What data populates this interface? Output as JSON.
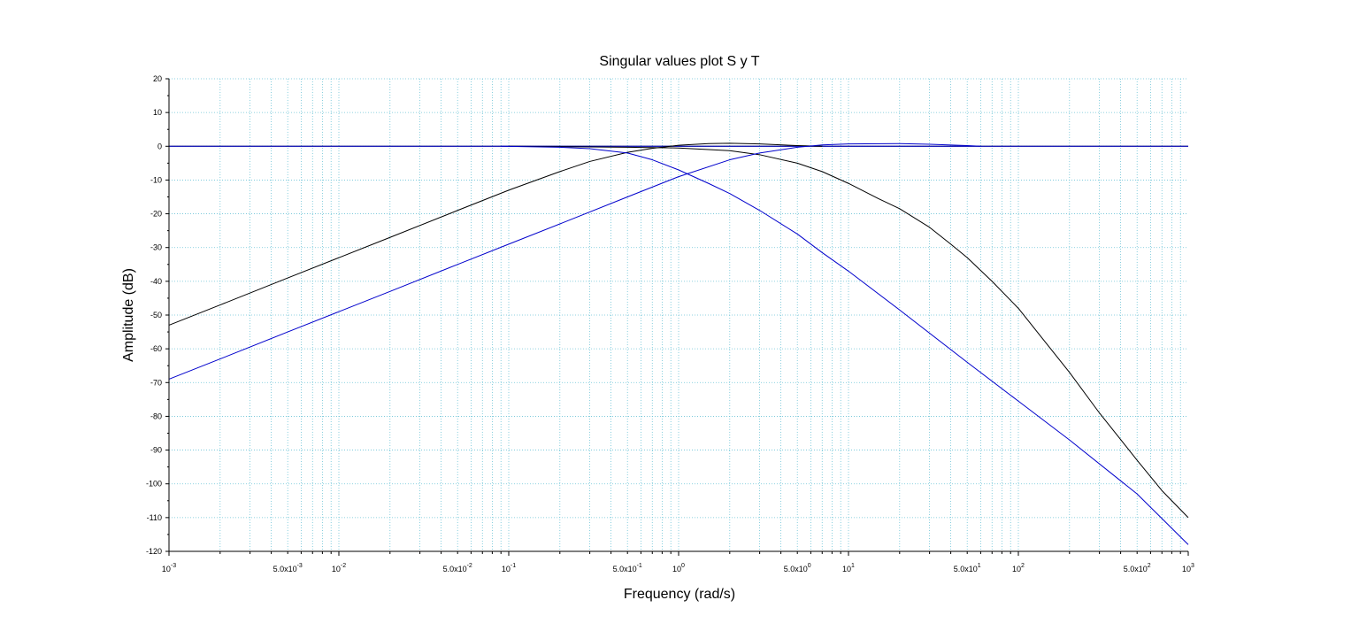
{
  "chart_data": {
    "type": "line",
    "title": "Singular values plot S y T",
    "xlabel": "Frequency (rad/s)",
    "ylabel": "Amplitude (dB)",
    "xscale": "log",
    "xlim": [
      0.001,
      1000
    ],
    "ylim": [
      -120,
      20
    ],
    "grid": true,
    "colors": {
      "grid": "#6bc3d6",
      "axes": "#000000",
      "series_black": "#000000",
      "series_blue": "#0000cc"
    },
    "y_ticks": [
      {
        "value": 20,
        "label": "20"
      },
      {
        "value": 10,
        "label": "10"
      },
      {
        "value": 0,
        "label": "0"
      },
      {
        "value": -10,
        "label": "-10"
      },
      {
        "value": -20,
        "label": "-20"
      },
      {
        "value": -30,
        "label": "-30"
      },
      {
        "value": -40,
        "label": "-40"
      },
      {
        "value": -50,
        "label": "-50"
      },
      {
        "value": -60,
        "label": "-60"
      },
      {
        "value": -70,
        "label": "-70"
      },
      {
        "value": -80,
        "label": "-80"
      },
      {
        "value": -90,
        "label": "-90"
      },
      {
        "value": -100,
        "label": "-100"
      },
      {
        "value": -110,
        "label": "-110"
      },
      {
        "value": -120,
        "label": "-120"
      }
    ],
    "x_ticks": [
      {
        "value": 0.001,
        "base": "10",
        "exp": "-3",
        "coef": ""
      },
      {
        "value": 0.005,
        "base": "5.0x10",
        "exp": "-3",
        "coef": ""
      },
      {
        "value": 0.01,
        "base": "10",
        "exp": "-2",
        "coef": ""
      },
      {
        "value": 0.05,
        "base": "5.0x10",
        "exp": "-2",
        "coef": ""
      },
      {
        "value": 0.1,
        "base": "10",
        "exp": "-1",
        "coef": ""
      },
      {
        "value": 0.5,
        "base": "5.0x10",
        "exp": "-1",
        "coef": ""
      },
      {
        "value": 1,
        "base": "10",
        "exp": "0",
        "coef": ""
      },
      {
        "value": 5,
        "base": "5.0x10",
        "exp": "0",
        "coef": ""
      },
      {
        "value": 10,
        "base": "10",
        "exp": "1",
        "coef": ""
      },
      {
        "value": 50,
        "base": "5.0x10",
        "exp": "1",
        "coef": ""
      },
      {
        "value": 100,
        "base": "10",
        "exp": "2",
        "coef": ""
      },
      {
        "value": 500,
        "base": "5.0x10",
        "exp": "2",
        "coef": ""
      },
      {
        "value": 1000,
        "base": "10",
        "exp": "3",
        "coef": ""
      }
    ],
    "series": [
      {
        "color": "#000000",
        "points": [
          [
            0.001,
            0
          ],
          [
            1000,
            0
          ]
        ]
      },
      {
        "color": "#0000cc",
        "points": [
          [
            0.001,
            0
          ],
          [
            1000,
            0
          ]
        ]
      },
      {
        "color": "#000000",
        "points": [
          [
            0.001,
            -53
          ],
          [
            0.002,
            -47
          ],
          [
            0.005,
            -39
          ],
          [
            0.01,
            -33
          ],
          [
            0.02,
            -27
          ],
          [
            0.05,
            -19
          ],
          [
            0.1,
            -13
          ],
          [
            0.2,
            -7.5
          ],
          [
            0.3,
            -4.5
          ],
          [
            0.5,
            -1.8
          ],
          [
            0.7,
            -0.6
          ],
          [
            1,
            0.3
          ],
          [
            1.5,
            0.8
          ],
          [
            2,
            0.9
          ],
          [
            3,
            0.7
          ],
          [
            5,
            0.2
          ],
          [
            7,
            0
          ]
        ]
      },
      {
        "color": "#000000",
        "points": [
          [
            0.1,
            0
          ],
          [
            0.3,
            -0.2
          ],
          [
            0.5,
            -0.3
          ],
          [
            1,
            -0.5
          ],
          [
            2,
            -1.3
          ],
          [
            3,
            -2.5
          ],
          [
            5,
            -5
          ],
          [
            7,
            -7.5
          ],
          [
            10,
            -11
          ],
          [
            15,
            -15.5
          ],
          [
            20,
            -18.5
          ],
          [
            30,
            -24
          ],
          [
            40,
            -29
          ],
          [
            50,
            -33
          ],
          [
            70,
            -40
          ],
          [
            100,
            -48
          ],
          [
            200,
            -67
          ],
          [
            300,
            -79
          ],
          [
            500,
            -93
          ],
          [
            700,
            -102
          ],
          [
            1000,
            -110
          ]
        ]
      },
      {
        "color": "#0000cc",
        "points": [
          [
            0.001,
            -69
          ],
          [
            0.002,
            -63
          ],
          [
            0.005,
            -55
          ],
          [
            0.01,
            -49
          ],
          [
            0.02,
            -43
          ],
          [
            0.05,
            -35
          ],
          [
            0.1,
            -29
          ],
          [
            0.2,
            -23
          ],
          [
            0.5,
            -15
          ],
          [
            1,
            -9
          ],
          [
            2,
            -4
          ],
          [
            3,
            -2
          ],
          [
            5,
            -0.3
          ],
          [
            7,
            0.4
          ],
          [
            10,
            0.7
          ],
          [
            20,
            0.8
          ],
          [
            30,
            0.6
          ],
          [
            50,
            0.2
          ],
          [
            60,
            0
          ]
        ]
      },
      {
        "color": "#0000cc",
        "points": [
          [
            0.09,
            0
          ],
          [
            0.2,
            -0.3
          ],
          [
            0.3,
            -0.7
          ],
          [
            0.5,
            -2
          ],
          [
            0.7,
            -4
          ],
          [
            1,
            -7
          ],
          [
            1.5,
            -11
          ],
          [
            2,
            -14
          ],
          [
            3,
            -19
          ],
          [
            5,
            -26
          ],
          [
            7,
            -31.5
          ],
          [
            10,
            -37
          ],
          [
            20,
            -48.5
          ],
          [
            50,
            -64
          ],
          [
            100,
            -75.5
          ],
          [
            200,
            -87
          ],
          [
            500,
            -103
          ],
          [
            1000,
            -118
          ]
        ]
      }
    ]
  }
}
